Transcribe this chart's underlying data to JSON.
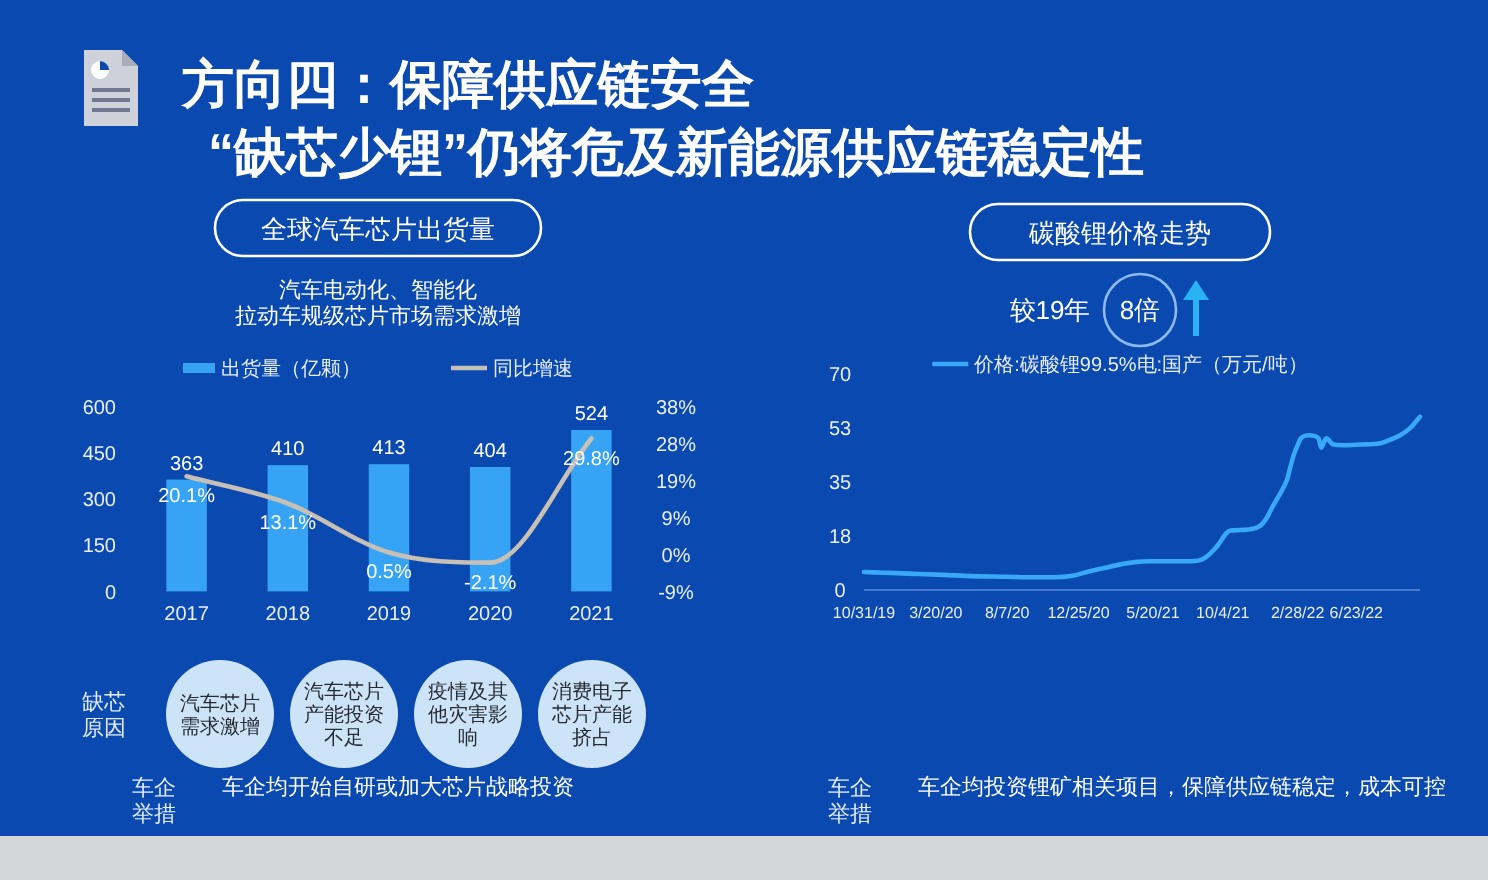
{
  "chart_data": [
    {
      "type": "other",
      "title": "方向四：保障供应链安全",
      "subtitle": "“缺芯少锂”仍将危及新能源供应链稳定性"
    },
    {
      "type": "bar",
      "title": "全球汽车芯片出货量",
      "subtitle": "汽车电动化、智能化拉动车规级芯片市场需求激增",
      "categories": [
        "2017",
        "2018",
        "2019",
        "2020",
        "2021"
      ],
      "series": [
        {
          "name": "出货量（亿颗）",
          "type": "bar",
          "color": "#37a3f5",
          "values": [
            363,
            410,
            413,
            404,
            524
          ],
          "value_labels": [
            "363",
            "410",
            "413",
            "404",
            "524"
          ]
        },
        {
          "name": "同比增速",
          "type": "line",
          "axis": "y2",
          "color": "#c8c0b4",
          "values": [
            20.1,
            13.1,
            0.5,
            -2.1,
            29.8
          ],
          "value_labels": [
            "20.1%",
            "13.1%",
            "0.5%",
            "-2.1%",
            "29.8%"
          ]
        }
      ],
      "ylim": [
        0,
        600
      ],
      "yticks": [
        0,
        150,
        300,
        450,
        600
      ],
      "y2lim": [
        -9.5,
        38
      ],
      "y2ticks": [
        {
          "value": -9.5,
          "label": "-9%"
        },
        {
          "value": 0,
          "label": "0%"
        },
        {
          "value": 9.5,
          "label": "9%"
        },
        {
          "value": 19,
          "label": "19%"
        },
        {
          "value": 28.5,
          "label": "28%"
        },
        {
          "value": 38,
          "label": "38%"
        }
      ],
      "legend": "top",
      "annotations": [
        "缺芯原因",
        "汽车芯片需求激增",
        "汽车芯片产能投资不足",
        "疫情及其他灾害影响",
        "消费电子芯片产能挤占",
        "车企举措",
        "车企均开始自研或加大芯片战略投资"
      ]
    },
    {
      "type": "line",
      "title": "碳酸锂价格走势",
      "x": [
        "2019-10-31",
        "2019-12-10",
        "2020-02-06",
        "2020-04-03",
        "2020-05-28",
        "2020-08-04",
        "2020-09-27",
        "2020-11-06",
        "2020-12-16",
        "2021-01-14",
        "2021-02-13",
        "2021-03-15",
        "2021-04-14",
        "2021-05-14",
        "2021-06-23",
        "2021-08-01",
        "2021-08-27",
        "2021-09-22",
        "2021-10-12",
        "2021-10-19",
        "2021-11-09",
        "2021-12-14",
        "2021-12-28",
        "2022-01-10",
        "2022-01-24",
        "2022-02-07",
        "2022-02-14",
        "2022-02-21",
        "2022-02-28",
        "2022-03-06",
        "2022-03-23",
        "2022-04-10",
        "2022-04-15",
        "2022-04-25",
        "2022-05-09",
        "2022-05-27",
        "2022-07-01",
        "2022-08-09",
        "2022-08-28",
        "2022-09-17",
        "2022-10-07",
        "2022-10-26"
      ],
      "series": [
        {
          "name": "价格:碳酸锂99.5%电:国产（万元/吨）",
          "color": "#3aa8f8",
          "values": [
            5.8,
            5.6,
            5.2,
            4.9,
            4.5,
            4.3,
            4.1,
            4.1,
            4.7,
            6.0,
            7.1,
            8.2,
            9.0,
            9.3,
            9.3,
            9.3,
            10.1,
            14,
            18.5,
            19.2,
            19.4,
            20.5,
            23,
            27,
            31,
            35.6,
            40,
            44,
            46.8,
            49,
            50,
            49,
            46,
            49,
            47,
            46.8,
            47,
            47.4,
            48.5,
            50,
            52.4,
            56
          ]
        }
      ],
      "xlim": [
        "2019-10-31",
        "2022-10-26"
      ],
      "xticks": [
        {
          "value": "2019-10-31",
          "label": "10/31/19"
        },
        {
          "value": "2020-03-20",
          "label": "3/20/20"
        },
        {
          "value": "2020-08-07",
          "label": "8/7/20"
        },
        {
          "value": "2020-12-25",
          "label": "12/25/20"
        },
        {
          "value": "2021-05-20",
          "label": "5/20/21"
        },
        {
          "value": "2021-10-04",
          "label": "10/4/21"
        },
        {
          "value": "2022-02-28",
          "label": "2/28/22"
        },
        {
          "value": "2022-06-23",
          "label": "6/23/22"
        }
      ],
      "ylim": [
        0,
        70
      ],
      "yticks": [
        0,
        {
          "value": 17.5,
          "label": "18"
        },
        35,
        {
          "value": 52.5,
          "label": "53"
        },
        70
      ],
      "legend": "top",
      "annotations": [
        "较19年",
        "8倍",
        "车企举措",
        "车企均投资锂矿相关项目，保障供应链稳定，成本可控"
      ]
    }
  ]
}
